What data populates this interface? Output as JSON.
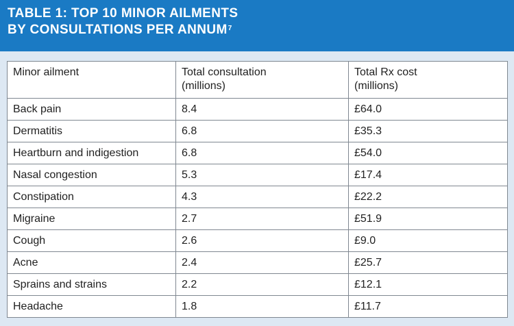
{
  "title": {
    "line1": "TABLE 1: TOP 10 MINOR AILMENTS",
    "line2": "BY CONSULTATIONS PER ANNUM",
    "ref": "7"
  },
  "table": {
    "headers": [
      {
        "line1": "Minor ailment",
        "line2": ""
      },
      {
        "line1": "Total consultation",
        "line2": "(millions)"
      },
      {
        "line1": "Total Rx cost",
        "line2": "(millions)"
      }
    ],
    "rows": [
      [
        "Back pain",
        "8.4",
        "£64.0"
      ],
      [
        "Dermatitis",
        "6.8",
        "£35.3"
      ],
      [
        "Heartburn and indigestion",
        "6.8",
        "£54.0"
      ],
      [
        "Nasal congestion",
        "5.3",
        "£17.4"
      ],
      [
        "Constipation",
        "4.3",
        "£22.2"
      ],
      [
        "Migraine",
        "2.7",
        "£51.9"
      ],
      [
        "Cough",
        "2.6",
        "£9.0"
      ],
      [
        "Acne",
        "2.4",
        "£25.7"
      ],
      [
        "Sprains and strains",
        "2.2",
        "£12.1"
      ],
      [
        "Headache",
        "1.8",
        "£11.7"
      ]
    ]
  },
  "colors": {
    "header_bg": "#1a7ac4",
    "page_bg": "#dde8f3",
    "border": "#7f8790"
  }
}
